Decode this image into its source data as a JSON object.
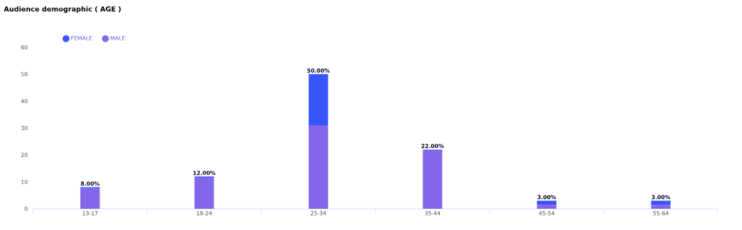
{
  "chart_data": {
    "type": "bar",
    "title": "Audience demographic ( AGE )",
    "categories": [
      "13-17",
      "18-24",
      "25-34",
      "35-44",
      "45-54",
      "55-64"
    ],
    "stacked": true,
    "series": [
      {
        "name": "MALE",
        "color": "#8466ea",
        "values": [
          7.5,
          11.7,
          31,
          22,
          1.5,
          1.5
        ]
      },
      {
        "name": "FEMALE",
        "color": "#3755fb",
        "values": [
          0.5,
          0.3,
          19,
          0,
          1.5,
          1.5
        ]
      }
    ],
    "totals": [
      "8.00%",
      "12.00%",
      "50.00%",
      "22.00%",
      "3.00%",
      "3.00%"
    ],
    "ylim": [
      0,
      60
    ],
    "yticks": [
      0,
      10,
      20,
      30,
      40,
      50,
      60
    ],
    "legend": "top left",
    "marker": "circle"
  }
}
